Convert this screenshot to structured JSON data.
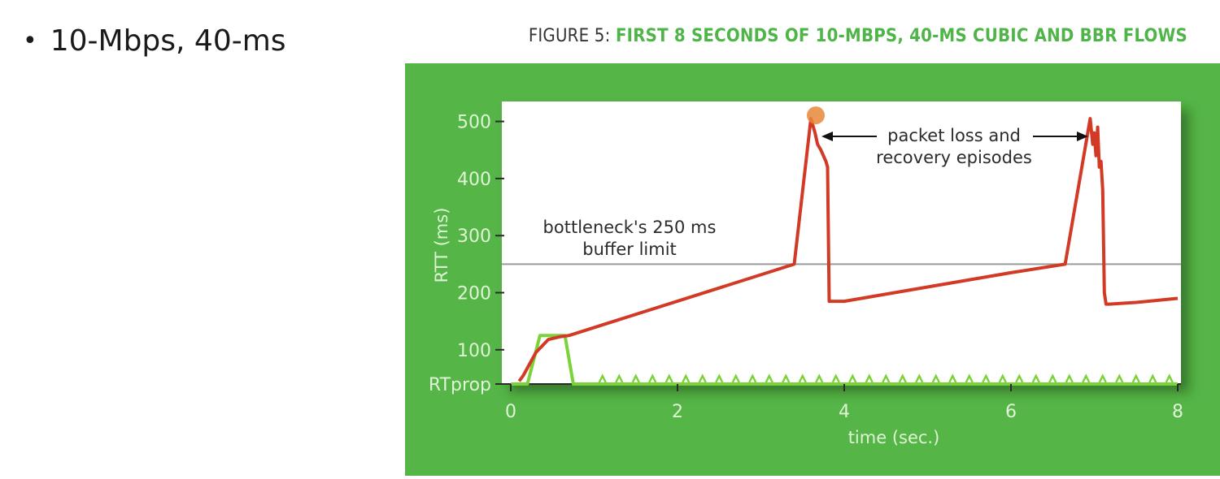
{
  "bullet": {
    "text": "10-Mbps, 40-ms"
  },
  "figure": {
    "title_prefix": "FIGURE 5:",
    "title_main": "FIRST 8 SECONDS OF 10-MBPS, 40-MS CUBIC AND BBR FLOWS",
    "background_color": "#55b547",
    "title_color": "#4fb548"
  },
  "chart_data": {
    "type": "line",
    "xlabel": "time (sec.)",
    "ylabel": "RTT (ms)",
    "xlim": [
      0,
      8
    ],
    "ylim": [
      40,
      535
    ],
    "x_ticks": [
      0,
      2,
      4,
      6,
      8
    ],
    "x_tick_labels": [
      "0",
      "2",
      "4",
      "6",
      "8"
    ],
    "y_ticks": [
      40,
      100,
      200,
      300,
      400,
      500
    ],
    "y_tick_labels": [
      "RTprop",
      "100",
      "200",
      "300",
      "400",
      "500"
    ],
    "grid": false,
    "reference_line": {
      "y": 250,
      "label_line1": "bottleneck's 250 ms",
      "label_line2": "buffer limit",
      "color": "#9a9a9a"
    },
    "annotations": {
      "line1": "packet loss and",
      "line2": "recovery episodes"
    },
    "highlight_point": {
      "x": 3.6,
      "y": 505,
      "color": "#e8873a"
    },
    "series": [
      {
        "color": "#d23a25",
        "x": [
          0.1,
          0.15,
          0.3,
          0.45,
          0.6,
          0.7,
          3.4,
          3.6,
          3.65,
          3.68,
          3.72,
          3.75,
          3.78,
          3.8,
          3.82,
          3.85,
          4.0,
          5.0,
          6.0,
          6.65,
          6.95,
          6.98,
          7.0,
          7.02,
          7.04,
          7.06,
          7.08,
          7.1,
          7.12,
          7.14,
          7.18,
          7.5,
          8.0
        ],
        "y": [
          45,
          55,
          95,
          118,
          123,
          125,
          250,
          505,
          480,
          460,
          450,
          440,
          430,
          420,
          185,
          185,
          185,
          210,
          235,
          250,
          505,
          460,
          480,
          440,
          490,
          420,
          430,
          380,
          200,
          180,
          180,
          183,
          190
        ]
      },
      {
        "color": "#7bd23a",
        "x": [
          0.0,
          0.2,
          0.35,
          0.65,
          0.75,
          8.0
        ],
        "y": [
          40,
          40,
          125,
          125,
          40,
          40
        ],
        "pulses": [
          1.1,
          1.3,
          1.5,
          1.7,
          1.9,
          2.1,
          2.3,
          2.5,
          2.7,
          2.9,
          3.1,
          3.3,
          3.5,
          3.7,
          3.9,
          4.1,
          4.3,
          4.5,
          4.7,
          4.9,
          5.1,
          5.3,
          5.5,
          5.7,
          5.9,
          6.1,
          6.3,
          6.5,
          6.7,
          6.9,
          7.1,
          7.3,
          7.5,
          7.7,
          7.9
        ]
      }
    ]
  }
}
